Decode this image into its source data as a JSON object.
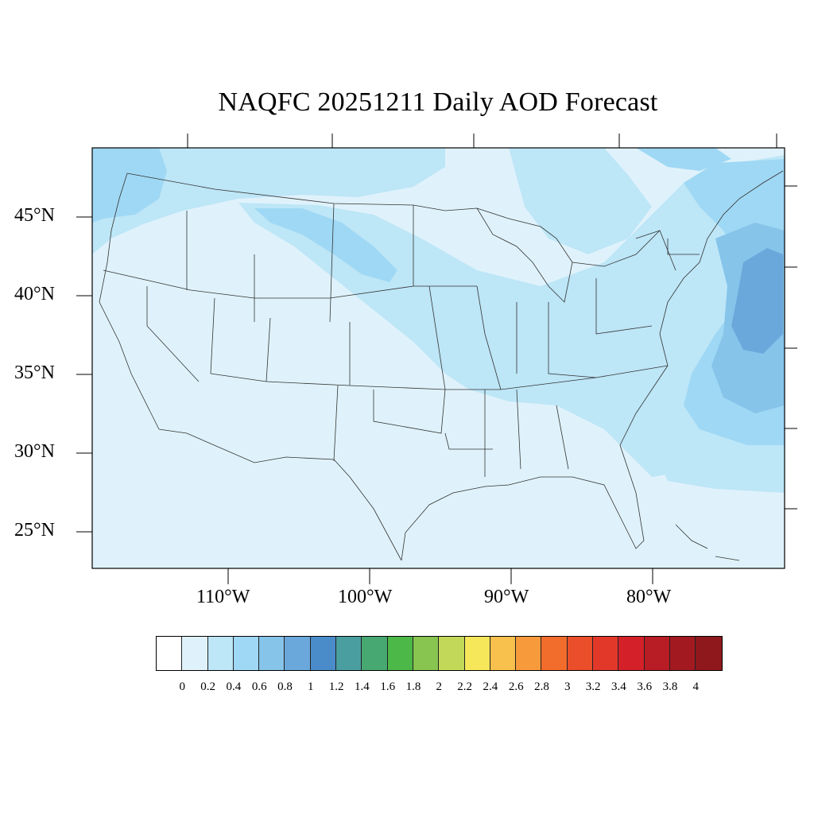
{
  "title": "NAQFC 20251211 Daily AOD Forecast",
  "map": {
    "region": "Continental United States",
    "projection": "lat-lon",
    "lon_range": [
      -119,
      -71
    ],
    "lat_range": [
      22.5,
      49
    ],
    "lat_labels": [
      "45°N",
      "40°N",
      "35°N",
      "30°N",
      "25°N"
    ],
    "lon_labels": [
      "110°W",
      "100°W",
      "90°W",
      "80°W"
    ],
    "field": "Aerosol Optical Depth (AOD)",
    "fill_colors": {
      "background": "#dff2fb",
      "level_0_2": "#bde6f7",
      "level_0_4": "#9fd8f4",
      "level_0_6": "#86c4ea",
      "level_0_8": "#6aa8dc"
    }
  },
  "colorbar": {
    "tick_labels": [
      "0",
      "0.2",
      "0.4",
      "0.6",
      "0.8",
      "1",
      "1.2",
      "1.4",
      "1.6",
      "1.8",
      "2",
      "2.2",
      "2.4",
      "2.6",
      "2.8",
      "3",
      "3.2",
      "3.4",
      "3.6",
      "3.8",
      "4"
    ],
    "colors": [
      "#ffffff",
      "#dff2fb",
      "#bde6f7",
      "#9fd8f4",
      "#86c4ea",
      "#6aa8dc",
      "#4a8cca",
      "#4a9ea0",
      "#48a872",
      "#4cb848",
      "#88c450",
      "#c2d858",
      "#f6e65a",
      "#f8c04c",
      "#f69a3c",
      "#f26c2c",
      "#ea4e2a",
      "#e2382a",
      "#d42028",
      "#b81c24",
      "#a21a20",
      "#8e181c"
    ]
  }
}
